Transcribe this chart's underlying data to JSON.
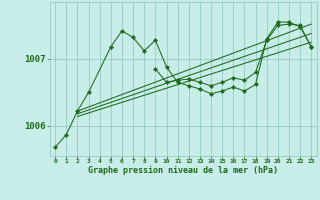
{
  "xlabel": "Graphe pression niveau de la mer (hPa)",
  "background_color": "#c8ece8",
  "plot_bg_color": "#c8ece8",
  "grid_color": "#88c4c0",
  "line_color": "#1a6b1a",
  "text_color": "#1a6b1a",
  "ylim": [
    1005.55,
    1007.85
  ],
  "xlim": [
    -0.5,
    23.5
  ],
  "yticks": [
    1006,
    1007
  ],
  "xticks": [
    0,
    1,
    2,
    3,
    4,
    5,
    6,
    7,
    8,
    9,
    10,
    11,
    12,
    13,
    14,
    15,
    16,
    17,
    18,
    19,
    20,
    21,
    22,
    23
  ],
  "series1_x": [
    0,
    1,
    2,
    3,
    5,
    6,
    7,
    8,
    9,
    10,
    11,
    12,
    13,
    14,
    15,
    16,
    17,
    18,
    19,
    20,
    21,
    22,
    23
  ],
  "series1_y": [
    1005.68,
    1005.87,
    1006.22,
    1006.5,
    1007.18,
    1007.42,
    1007.32,
    1007.12,
    1007.28,
    1006.88,
    1006.65,
    1006.6,
    1006.55,
    1006.48,
    1006.52,
    1006.58,
    1006.52,
    1006.62,
    1007.3,
    1007.55,
    1007.55,
    1007.48,
    1007.18
  ],
  "series2_x": [
    9,
    10,
    11,
    12,
    13,
    14,
    15,
    16,
    17,
    18,
    19,
    20,
    21,
    22,
    23
  ],
  "series2_y": [
    1006.85,
    1006.65,
    1006.68,
    1006.7,
    1006.65,
    1006.6,
    1006.65,
    1006.72,
    1006.68,
    1006.8,
    1007.28,
    1007.5,
    1007.52,
    1007.5,
    1007.18
  ],
  "trend_lines": [
    {
      "x": [
        2,
        23
      ],
      "y": [
        1006.22,
        1007.52
      ]
    },
    {
      "x": [
        2,
        23
      ],
      "y": [
        1006.18,
        1007.38
      ]
    },
    {
      "x": [
        2,
        23
      ],
      "y": [
        1006.14,
        1007.25
      ]
    }
  ]
}
